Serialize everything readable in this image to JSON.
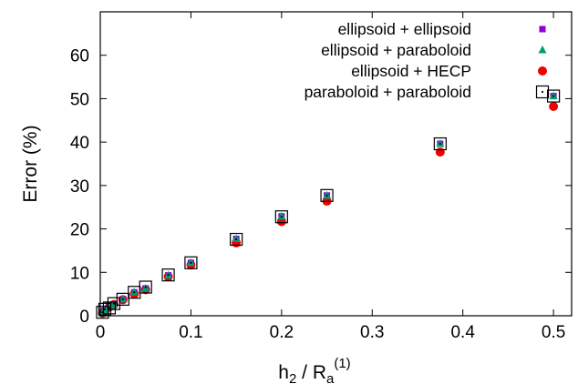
{
  "chart_data": {
    "type": "scatter",
    "title": "",
    "xlabel": {
      "base": "h",
      "sub1": "2",
      "mid": " / R",
      "sub2": "a",
      "sup": "(1)"
    },
    "ylabel": "Error (%)",
    "xlim": [
      0,
      0.52
    ],
    "ylim": [
      0,
      70
    ],
    "xticks": [
      0,
      0.1,
      0.2,
      0.3,
      0.4,
      0.5
    ],
    "xtick_labels": [
      "0",
      "0.1",
      "0.2",
      "0.3",
      "0.4",
      "0.5"
    ],
    "yticks": [
      0,
      10,
      20,
      30,
      40,
      50,
      60
    ],
    "ytick_labels": [
      "0",
      "10",
      "20",
      "30",
      "40",
      "50",
      "60"
    ],
    "grid": false,
    "legend_position": "top-right",
    "colors": {
      "purple": "#9400d3",
      "green": "#009e73",
      "red": "#ee0000",
      "black": "#000000"
    },
    "series": [
      {
        "name": "ellipsoid + ellipsoid",
        "marker": "square",
        "color": "#9400d3",
        "x": [
          0.0025,
          0.005,
          0.01,
          0.015,
          0.025,
          0.0375,
          0.05,
          0.075,
          0.1,
          0.15,
          0.2,
          0.25,
          0.375,
          0.5
        ],
        "y": [
          0.6,
          1.2,
          2.3,
          2.6,
          3.8,
          5.4,
          6.3,
          9.3,
          12.2,
          17.7,
          22.9,
          27.7,
          39.6,
          50.6
        ]
      },
      {
        "name": "ellipsoid + paraboloid",
        "marker": "triangle",
        "color": "#009e73",
        "x": [
          0.0025,
          0.005,
          0.01,
          0.015,
          0.025,
          0.0375,
          0.05,
          0.075,
          0.1,
          0.15,
          0.2,
          0.25,
          0.375,
          0.5
        ],
        "y": [
          0.6,
          1.2,
          2.3,
          2.6,
          3.8,
          5.4,
          6.3,
          9.3,
          12.2,
          17.7,
          22.9,
          27.7,
          39.6,
          50.6
        ]
      },
      {
        "name": "ellipsoid + HECP",
        "marker": "circle",
        "color": "#ee0000",
        "x": [
          0.0025,
          0.005,
          0.01,
          0.015,
          0.025,
          0.0375,
          0.05,
          0.075,
          0.1,
          0.15,
          0.2,
          0.25,
          0.375,
          0.5
        ],
        "y": [
          0.6,
          1.1,
          2.0,
          2.6,
          3.7,
          5.0,
          6.0,
          9.0,
          11.7,
          16.8,
          21.7,
          26.4,
          37.7,
          48.2
        ]
      },
      {
        "name": "paraboloid + paraboloid",
        "marker": "dotted-square",
        "color": "#000000",
        "x": [
          0.0025,
          0.005,
          0.01,
          0.015,
          0.025,
          0.0375,
          0.05,
          0.075,
          0.1,
          0.15,
          0.2,
          0.25,
          0.375,
          0.5
        ],
        "y": [
          0.8,
          1.5,
          1.8,
          2.8,
          3.8,
          5.4,
          6.6,
          9.4,
          12.2,
          17.6,
          22.8,
          27.7,
          39.6,
          50.6
        ]
      }
    ]
  }
}
